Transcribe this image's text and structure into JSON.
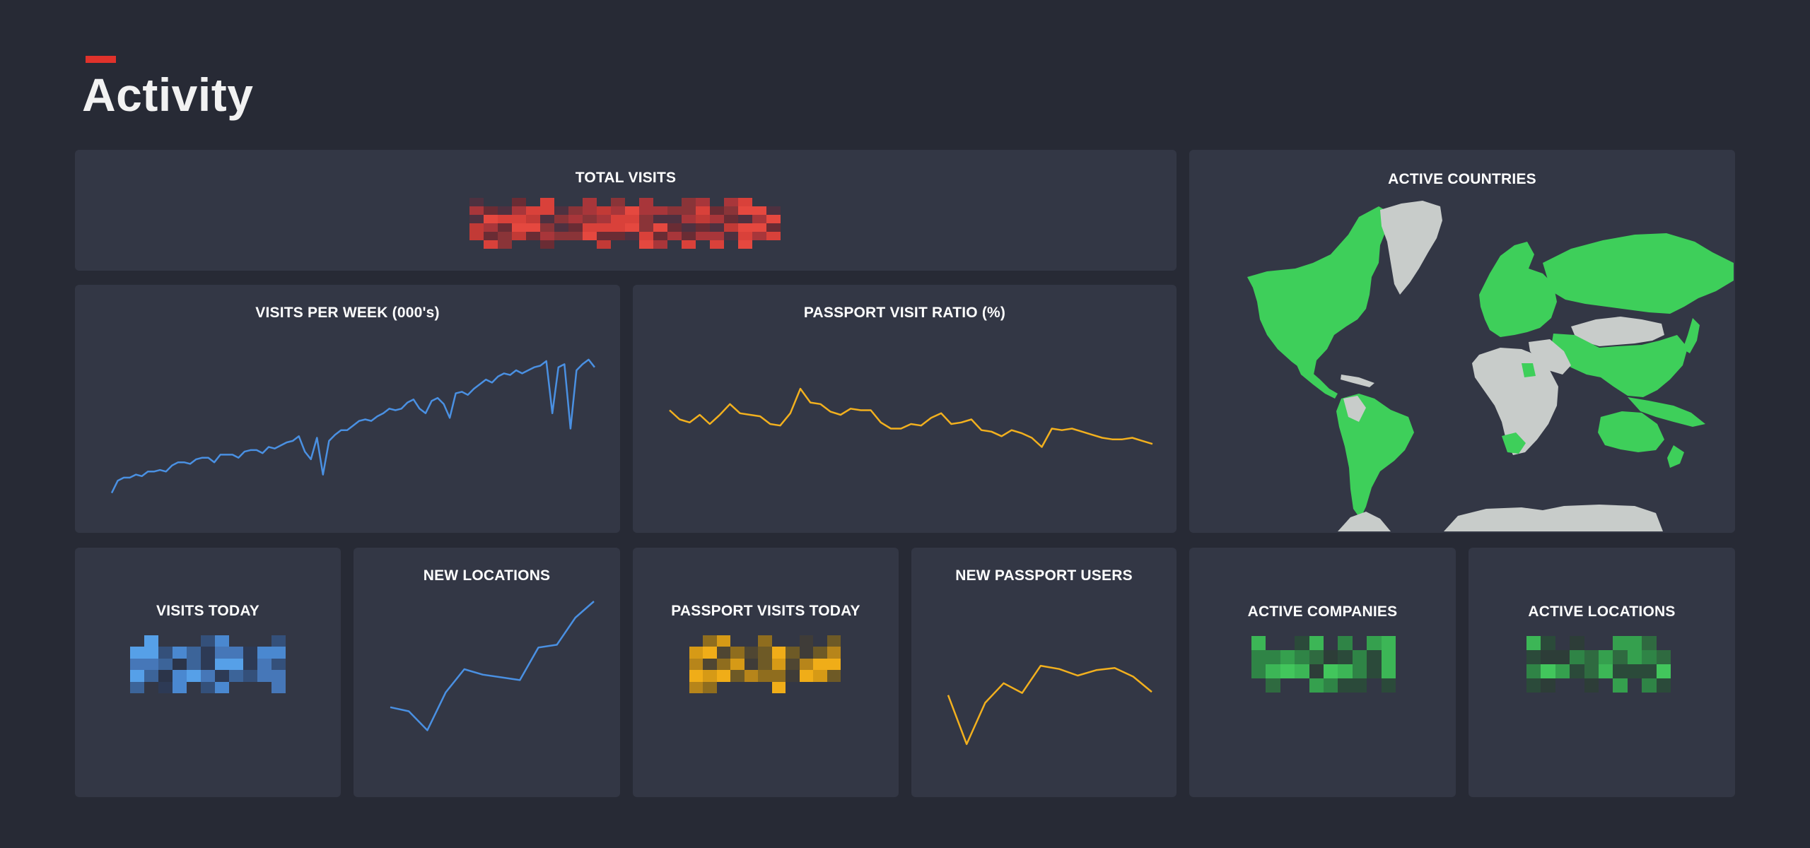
{
  "page": {
    "title": "Activity"
  },
  "colors": {
    "background": "#272a35",
    "card": "#333745",
    "accent_red": "#e0322b",
    "blue": "#4a90e2",
    "yellow": "#f2b01e",
    "green": "#3ecf5a",
    "map_inactive": "#c8ccca"
  },
  "cards": {
    "total_visits": {
      "title": "TOTAL VISITS",
      "value_state": "pixelated"
    },
    "active_countries": {
      "title": "ACTIVE COUNTRIES"
    },
    "visits_per_week": {
      "title": "VISITS PER WEEK (000's)"
    },
    "passport_visit_ratio": {
      "title": "PASSPORT VISIT RATIO (%)"
    },
    "visits_today": {
      "title": "VISITS TODAY",
      "value_state": "pixelated"
    },
    "new_locations": {
      "title": "NEW LOCATIONS"
    },
    "passport_visits_today": {
      "title": "PASSPORT VISITS TODAY",
      "value_state": "pixelated"
    },
    "new_passport_users": {
      "title": "NEW PASSPORT USERS"
    },
    "active_companies": {
      "title": "ACTIVE COMPANIES",
      "value_state": "pixelated"
    },
    "active_locations": {
      "title": "ACTIVE LOCATIONS",
      "value_state": "pixelated"
    }
  },
  "chart_data": [
    {
      "id": "visits_per_week",
      "type": "line",
      "color": "#4a90e2",
      "xlim": [
        0,
        80
      ],
      "ylim": [
        0,
        100
      ],
      "x": [
        0,
        1,
        2,
        3,
        4,
        5,
        6,
        7,
        8,
        9,
        10,
        11,
        12,
        13,
        14,
        15,
        16,
        17,
        18,
        19,
        20,
        21,
        22,
        23,
        24,
        25,
        26,
        27,
        28,
        29,
        30,
        31,
        32,
        33,
        34,
        35,
        36,
        37,
        38,
        39,
        40,
        41,
        42,
        43,
        44,
        45,
        46,
        47,
        48,
        49,
        50,
        51,
        52,
        53,
        54,
        55,
        56,
        57,
        58,
        59,
        60,
        61,
        62,
        63,
        64,
        65,
        66,
        67,
        68,
        69,
        70,
        71,
        72,
        73,
        74,
        75,
        76,
        77,
        78,
        79,
        80
      ],
      "y": [
        8,
        16,
        18,
        18,
        20,
        19,
        22,
        22,
        23,
        22,
        26,
        28,
        28,
        27,
        30,
        31,
        31,
        28,
        33,
        33,
        33,
        31,
        35,
        36,
        36,
        34,
        38,
        37,
        39,
        41,
        42,
        45,
        35,
        30,
        44,
        20,
        42,
        46,
        49,
        49,
        52,
        55,
        56,
        55,
        58,
        60,
        63,
        62,
        63,
        67,
        69,
        63,
        60,
        68,
        70,
        66,
        57,
        73,
        74,
        72,
        76,
        79,
        82,
        80,
        84,
        86,
        85,
        88,
        86,
        88,
        90,
        91,
        94,
        60,
        90,
        92,
        50,
        88,
        92,
        95,
        90
      ]
    },
    {
      "id": "passport_visit_ratio",
      "type": "line",
      "color": "#f2b01e",
      "xlim": [
        0,
        48
      ],
      "ylim": [
        0,
        100
      ],
      "x": [
        0,
        1,
        2,
        3,
        4,
        5,
        6,
        7,
        8,
        9,
        10,
        11,
        12,
        13,
        14,
        15,
        16,
        17,
        18,
        19,
        20,
        21,
        22,
        23,
        24,
        25,
        26,
        27,
        28,
        29,
        30,
        31,
        32,
        33,
        34,
        35,
        36,
        37,
        38,
        39,
        40,
        41,
        42,
        43,
        44,
        45,
        46,
        47,
        48
      ],
      "y": [
        62,
        56,
        54,
        59,
        53,
        59,
        66,
        60,
        59,
        58,
        53,
        52,
        60,
        76,
        67,
        66,
        61,
        59,
        63,
        62,
        62,
        54,
        50,
        50,
        53,
        52,
        57,
        60,
        53,
        54,
        56,
        49,
        48,
        45,
        49,
        47,
        44,
        38,
        50,
        49,
        50,
        48,
        46,
        44,
        43,
        43,
        44,
        42,
        40
      ]
    },
    {
      "id": "new_locations",
      "type": "line",
      "color": "#4a90e2",
      "xlim": [
        0,
        11
      ],
      "ylim": [
        0,
        100
      ],
      "x": [
        0,
        1,
        2,
        3,
        4,
        5,
        6,
        7,
        8,
        9,
        10,
        11
      ],
      "y": [
        22,
        19,
        5,
        33,
        50,
        46,
        44,
        42,
        66,
        68,
        88,
        100
      ]
    },
    {
      "id": "new_passport_users",
      "type": "line",
      "color": "#f2b01e",
      "xlim": [
        0,
        11
      ],
      "ylim": [
        0,
        100
      ],
      "x": [
        0,
        1,
        2,
        3,
        4,
        5,
        6,
        7,
        8,
        9,
        10,
        11
      ],
      "y": [
        45,
        0,
        38,
        56,
        47,
        72,
        69,
        63,
        68,
        70,
        62,
        48
      ]
    }
  ]
}
